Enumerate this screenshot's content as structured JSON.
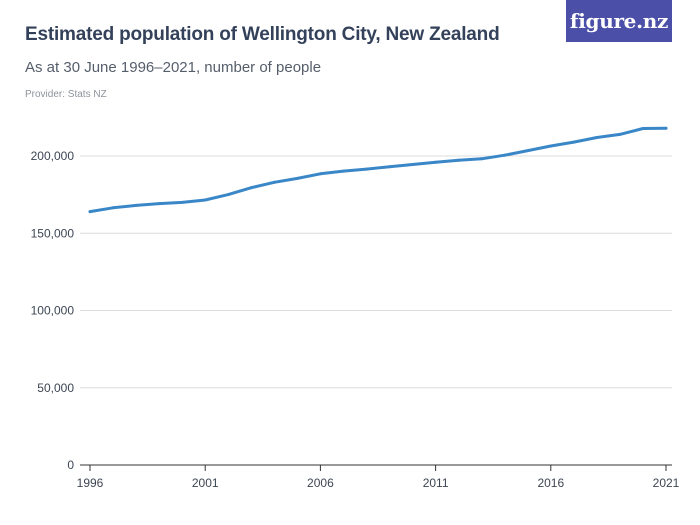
{
  "header": {
    "title": "Estimated population of Wellington City, New Zealand",
    "subtitle": "As at 30 June 1996–2021, number of people",
    "provider": "Provider: Stats NZ",
    "logo_text": "figure.nz"
  },
  "colors": {
    "line": "#3a87c8",
    "grid": "#dcdcdc",
    "axis": "#333333",
    "logo_bg": "#4b4fa8"
  },
  "chart_data": {
    "type": "line",
    "title": "Estimated population of Wellington City, New Zealand",
    "subtitle": "As at 30 June 1996–2021, number of people",
    "xlabel": "",
    "ylabel": "",
    "xlim": [
      1996,
      2021
    ],
    "ylim": [
      0,
      200000
    ],
    "grid": true,
    "legend": "none",
    "y_ticks": [
      0,
      50000,
      100000,
      150000,
      200000
    ],
    "y_tick_labels": [
      "0",
      "50,000",
      "100,000",
      "150,000",
      "200,000"
    ],
    "x_ticks": [
      1996,
      2001,
      2006,
      2011,
      2016,
      2021
    ],
    "x_tick_labels": [
      "1996",
      "2001",
      "2006",
      "2011",
      "2016",
      "2021"
    ],
    "series": [
      {
        "x": [
          1996,
          1997,
          1998,
          1999,
          2000,
          2001,
          2002,
          2003,
          2004,
          2005,
          2006,
          2007,
          2008,
          2009,
          2010,
          2011,
          2012,
          2013,
          2014,
          2015,
          2016,
          2017,
          2018,
          2019,
          2020,
          2021
        ],
        "values": [
          164000,
          166500,
          168000,
          169200,
          170000,
          171500,
          175000,
          179500,
          183000,
          185500,
          188500,
          190200,
          191500,
          193000,
          194500,
          196000,
          197200,
          198200,
          200500,
          203500,
          206500,
          209000,
          212000,
          214000,
          217800,
          218000
        ]
      }
    ]
  }
}
